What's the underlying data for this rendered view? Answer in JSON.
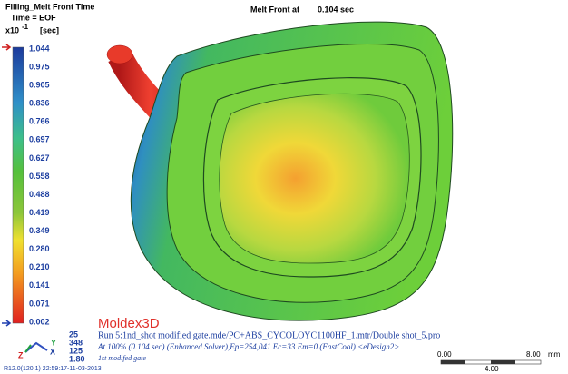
{
  "header": {
    "title": "Filling_Melt Front Time",
    "time": "Time = EOF",
    "unit_scale": "x10",
    "unit_exponent": "-1",
    "unit": "[sec]",
    "melt_front_label": "Melt Front at",
    "melt_front_value": "0.104 sec"
  },
  "legend": {
    "ticks": [
      "1.044",
      "0.975",
      "0.905",
      "0.836",
      "0.766",
      "0.697",
      "0.627",
      "0.558",
      "0.488",
      "0.419",
      "0.349",
      "0.280",
      "0.210",
      "0.141",
      "0.071",
      "0.002"
    ]
  },
  "footer": {
    "brand": "Moldex3D",
    "stats": [
      "25",
      "348",
      "125",
      "1.80"
    ],
    "run": "Run 5:1nd_shot modified gate.mde/PC+ABS_CYCOLOYC1100HF_1.mtr/Double shot_5.pro",
    "solver": "At 100% (0.104 sec) (Enhanced Solver),Ep=254,041 Ec=33 Em=0 (FastCool) <eDesign2>",
    "note": "1st modifed gate",
    "version": "R12.0(120.1) 22:59:17-11-03-2013"
  },
  "axes": {
    "x": "X",
    "y": "Y",
    "z": "Z"
  },
  "scale_bar": {
    "start": "0.00",
    "end": "8.00",
    "unit": "mm",
    "mid": "4.00"
  }
}
